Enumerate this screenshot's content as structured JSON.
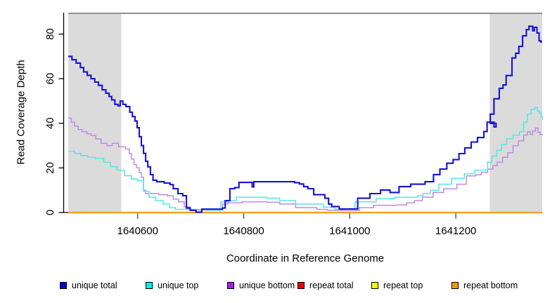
{
  "chart_data": {
    "type": "line",
    "line_style": "step-after",
    "title": "",
    "xlabel": "Coordinate in Reference Genome",
    "ylabel": "Read Coverage Depth",
    "xlim": [
      1640469,
      1641363
    ],
    "ylim": [
      0,
      89.3
    ],
    "x_ticks": [
      1640600,
      1640800,
      1641000,
      1641200
    ],
    "y_ticks": [
      0,
      20,
      40,
      60,
      80
    ],
    "grid": false,
    "legend_position": "bottom",
    "background_color": "#ffffff",
    "shaded_region_color": "#dbdbdb",
    "top_border_color": "#8f8f8f",
    "axis_color": "#000000",
    "x_tick_color": "#4a4a4a",
    "shaded_regions": [
      {
        "x0": 1640469,
        "x1": 1640569
      },
      {
        "x0": 1641264,
        "x1": 1641363
      }
    ],
    "series": [
      {
        "name": "unique total",
        "color": "#1414ce",
        "legend_color": "#0000dc",
        "points": [
          [
            1640469,
            70
          ],
          [
            1640476,
            68.5
          ],
          [
            1640484,
            67
          ],
          [
            1640492,
            65
          ],
          [
            1640498,
            63
          ],
          [
            1640505,
            61.5
          ],
          [
            1640512,
            60
          ],
          [
            1640519,
            58.5
          ],
          [
            1640526,
            57
          ],
          [
            1640533,
            55
          ],
          [
            1640540,
            53.5
          ],
          [
            1640546,
            52
          ],
          [
            1640551,
            50.5
          ],
          [
            1640557,
            48.5
          ],
          [
            1640563,
            47.8
          ],
          [
            1640567,
            50
          ],
          [
            1640572,
            48.5
          ],
          [
            1640578,
            47.5
          ],
          [
            1640585,
            45
          ],
          [
            1640590,
            43
          ],
          [
            1640595,
            41
          ],
          [
            1640599,
            38
          ],
          [
            1640603,
            34
          ],
          [
            1640607,
            30
          ],
          [
            1640611,
            26.5
          ],
          [
            1640615,
            23
          ],
          [
            1640619,
            20.5
          ],
          [
            1640624,
            17
          ],
          [
            1640629,
            14.5
          ],
          [
            1640636,
            13.8
          ],
          [
            1640650,
            13.2
          ],
          [
            1640661,
            12.5
          ],
          [
            1640667,
            10.7
          ],
          [
            1640676,
            8.5
          ],
          [
            1640685,
            7.5
          ],
          [
            1640692,
            2
          ],
          [
            1640699,
            1
          ],
          [
            1640710,
            0.2
          ],
          [
            1640721,
            1.5
          ],
          [
            1640760,
            2
          ],
          [
            1640765,
            5.3
          ],
          [
            1640774,
            10.7
          ],
          [
            1640783,
            11.2
          ],
          [
            1640791,
            13.5
          ],
          [
            1640813,
            13.5
          ],
          [
            1640816,
            11.5
          ],
          [
            1640819,
            13.8
          ],
          [
            1640860,
            13.8
          ],
          [
            1640896,
            13.4
          ],
          [
            1640905,
            12.8
          ],
          [
            1640913,
            11.6
          ],
          [
            1640921,
            10.7
          ],
          [
            1640932,
            8
          ],
          [
            1640953,
            6.4
          ],
          [
            1640960,
            3.8
          ],
          [
            1640966,
            2.7
          ],
          [
            1640980,
            1.6
          ],
          [
            1641015,
            6.4
          ],
          [
            1641038,
            8.5
          ],
          [
            1641058,
            10.1
          ],
          [
            1641076,
            9
          ],
          [
            1641093,
            11.6
          ],
          [
            1641115,
            12.7
          ],
          [
            1641142,
            13.8
          ],
          [
            1641158,
            17
          ],
          [
            1641170,
            19.5
          ],
          [
            1641183,
            22.1
          ],
          [
            1641195,
            23.7
          ],
          [
            1641206,
            26.4
          ],
          [
            1641217,
            29
          ],
          [
            1641229,
            31.6
          ],
          [
            1641241,
            33.6
          ],
          [
            1641253,
            36.3
          ],
          [
            1641259,
            40.5
          ],
          [
            1641272,
            38.4
          ],
          [
            1641276,
            40
          ],
          [
            1641265,
            44.1
          ],
          [
            1641272,
            51
          ],
          [
            1641282,
            55.7
          ],
          [
            1641289,
            57.2
          ],
          [
            1641295,
            61.4
          ],
          [
            1641306,
            69.3
          ],
          [
            1641313,
            71.4
          ],
          [
            1641319,
            74.5
          ],
          [
            1641326,
            79.2
          ],
          [
            1641333,
            82
          ],
          [
            1641338,
            83.5
          ],
          [
            1641345,
            81.5
          ],
          [
            1641348,
            83
          ],
          [
            1641353,
            80.5
          ],
          [
            1641357,
            77
          ],
          [
            1641360,
            76.5
          ],
          [
            1641363,
            76.5
          ]
        ]
      },
      {
        "name": "unique top",
        "color": "#55e6e6",
        "legend_color": "#00efef",
        "points": [
          [
            1640469,
            27.5
          ],
          [
            1640481,
            26.5
          ],
          [
            1640493,
            25.5
          ],
          [
            1640506,
            24.8
          ],
          [
            1640520,
            24.2
          ],
          [
            1640536,
            22.5
          ],
          [
            1640549,
            20.5
          ],
          [
            1640561,
            19
          ],
          [
            1640575,
            16.5
          ],
          [
            1640588,
            15
          ],
          [
            1640600,
            14.2
          ],
          [
            1640611,
            9.5
          ],
          [
            1640621,
            6.9
          ],
          [
            1640634,
            5.3
          ],
          [
            1640648,
            3.8
          ],
          [
            1640660,
            2.2
          ],
          [
            1640671,
            1.4
          ],
          [
            1640730,
            1
          ],
          [
            1640757,
            4.8
          ],
          [
            1640771,
            5.3
          ],
          [
            1640786,
            6.9
          ],
          [
            1640843,
            6.4
          ],
          [
            1640868,
            5.3
          ],
          [
            1640898,
            3.8
          ],
          [
            1640950,
            2.4
          ],
          [
            1640972,
            1.4
          ],
          [
            1641010,
            4.8
          ],
          [
            1641050,
            6.2
          ],
          [
            1641085,
            6.9
          ],
          [
            1641128,
            7.5
          ],
          [
            1641138,
            8.5
          ],
          [
            1641152,
            10
          ],
          [
            1641168,
            12.7
          ],
          [
            1641192,
            15.3
          ],
          [
            1641216,
            17.4
          ],
          [
            1641236,
            19
          ],
          [
            1641260,
            22.6
          ],
          [
            1641268,
            25.3
          ],
          [
            1641277,
            27.9
          ],
          [
            1641286,
            30.5
          ],
          [
            1641296,
            33.1
          ],
          [
            1641308,
            34.7
          ],
          [
            1641320,
            36.3
          ],
          [
            1641328,
            40.5
          ],
          [
            1641335,
            44.1
          ],
          [
            1641342,
            46.2
          ],
          [
            1641349,
            47
          ],
          [
            1641354,
            45.5
          ],
          [
            1641358,
            44.5
          ],
          [
            1641361,
            43
          ],
          [
            1641363,
            41.5
          ]
        ]
      },
      {
        "name": "unique bottom",
        "color": "#c08ae0",
        "legend_color": "#a020f0",
        "points": [
          [
            1640469,
            42.3
          ],
          [
            1640475,
            40.5
          ],
          [
            1640481,
            38.8
          ],
          [
            1640488,
            37.2
          ],
          [
            1640495,
            36.2
          ],
          [
            1640504,
            35.3
          ],
          [
            1640512,
            34.5
          ],
          [
            1640521,
            33
          ],
          [
            1640531,
            31
          ],
          [
            1640542,
            30
          ],
          [
            1640552,
            31
          ],
          [
            1640564,
            29.5
          ],
          [
            1640577,
            28.5
          ],
          [
            1640584,
            26.5
          ],
          [
            1640588,
            24
          ],
          [
            1640593,
            21.5
          ],
          [
            1640598,
            20.1
          ],
          [
            1640603,
            17.9
          ],
          [
            1640607,
            15.8
          ],
          [
            1640611,
            10
          ],
          [
            1640615,
            8.5
          ],
          [
            1640640,
            8
          ],
          [
            1640656,
            7.5
          ],
          [
            1640667,
            6
          ],
          [
            1640677,
            4.8
          ],
          [
            1640688,
            2.5
          ],
          [
            1640699,
            1.2
          ],
          [
            1640753,
            1.2
          ],
          [
            1640760,
            3.8
          ],
          [
            1640770,
            4.3
          ],
          [
            1640797,
            4.8
          ],
          [
            1640843,
            4.6
          ],
          [
            1640868,
            3.8
          ],
          [
            1640898,
            2.2
          ],
          [
            1640938,
            1.4
          ],
          [
            1640958,
            1
          ],
          [
            1640983,
            0.9
          ],
          [
            1641018,
            2.2
          ],
          [
            1641045,
            3.2
          ],
          [
            1641088,
            3.4
          ],
          [
            1641107,
            4.3
          ],
          [
            1641122,
            5.3
          ],
          [
            1641137,
            6.9
          ],
          [
            1641157,
            9
          ],
          [
            1641177,
            10.6
          ],
          [
            1641202,
            12.7
          ],
          [
            1641220,
            16.4
          ],
          [
            1641238,
            16.9
          ],
          [
            1641248,
            18
          ],
          [
            1641260,
            19.5
          ],
          [
            1641270,
            21
          ],
          [
            1641278,
            22.6
          ],
          [
            1641288,
            24.7
          ],
          [
            1641298,
            26.8
          ],
          [
            1641308,
            30
          ],
          [
            1641318,
            32.1
          ],
          [
            1641328,
            34.7
          ],
          [
            1641335,
            36.3
          ],
          [
            1641340,
            35
          ],
          [
            1641345,
            36.5
          ],
          [
            1641350,
            37.8
          ],
          [
            1641355,
            36
          ],
          [
            1641359,
            35
          ],
          [
            1641363,
            35.2
          ]
        ]
      },
      {
        "name": "repeat total",
        "color": "#e00000",
        "legend_color": "#f00000",
        "points": [
          [
            1640469,
            0
          ],
          [
            1641363,
            0
          ]
        ]
      },
      {
        "name": "repeat top",
        "color": "#ffff00",
        "legend_color": "#ffff00",
        "points": [
          [
            1640469,
            0
          ],
          [
            1641363,
            0
          ]
        ]
      },
      {
        "name": "repeat bottom",
        "color": "#ff9a1e",
        "legend_color": "#f89b00",
        "points": [
          [
            1640469,
            0
          ],
          [
            1641363,
            0
          ]
        ]
      }
    ]
  }
}
